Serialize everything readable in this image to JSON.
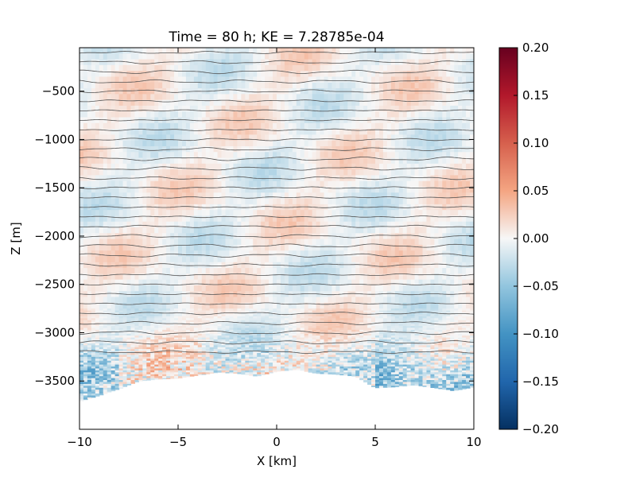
{
  "chart_data": {
    "type": "heatmap",
    "title": "Time = 80 h; KE = 7.28785e-04",
    "xlabel": "X [km]",
    "ylabel": "Z [m]",
    "xlim": [
      -10,
      10
    ],
    "ylim": [
      -4000,
      -50
    ],
    "x_ticks": [
      -10,
      -5,
      0,
      5,
      10
    ],
    "x_tick_labels": [
      "−10",
      "−5",
      "0",
      "5",
      "10"
    ],
    "y_ticks": [
      -500,
      -1000,
      -1500,
      -2000,
      -2500,
      -3000,
      -3500
    ],
    "y_tick_labels": [
      "−500",
      "−1000",
      "−1500",
      "−2000",
      "−2500",
      "−3000",
      "−3500"
    ],
    "colorbar": {
      "colormap": "RdBu_r",
      "vmin": -0.2,
      "vmax": 0.2,
      "ticks": [
        0.2,
        0.15,
        0.1,
        0.05,
        0.0,
        -0.05,
        -0.1,
        -0.15,
        -0.2
      ],
      "tick_labels": [
        "0.20",
        "0.15",
        "0.10",
        "0.05",
        "0.00",
        "−0.05",
        "−0.10",
        "−0.15",
        "−0.20"
      ]
    },
    "contours": {
      "color": "#505050",
      "spacing_m": 100,
      "from_m": -100,
      "to_m": -3200
    },
    "bottom_topography": {
      "x_km": [
        -10,
        -9,
        -8,
        -7,
        -6,
        -5,
        -4,
        -3,
        -2,
        -1,
        0,
        1,
        2,
        3,
        4,
        5,
        6,
        7,
        8,
        9,
        10
      ],
      "z_m": [
        -3710,
        -3650,
        -3580,
        -3500,
        -3480,
        -3470,
        -3440,
        -3410,
        -3420,
        -3450,
        -3400,
        -3380,
        -3420,
        -3430,
        -3450,
        -3570,
        -3560,
        -3540,
        -3570,
        -3600,
        -3560
      ]
    },
    "grid": false,
    "legend": "none"
  }
}
